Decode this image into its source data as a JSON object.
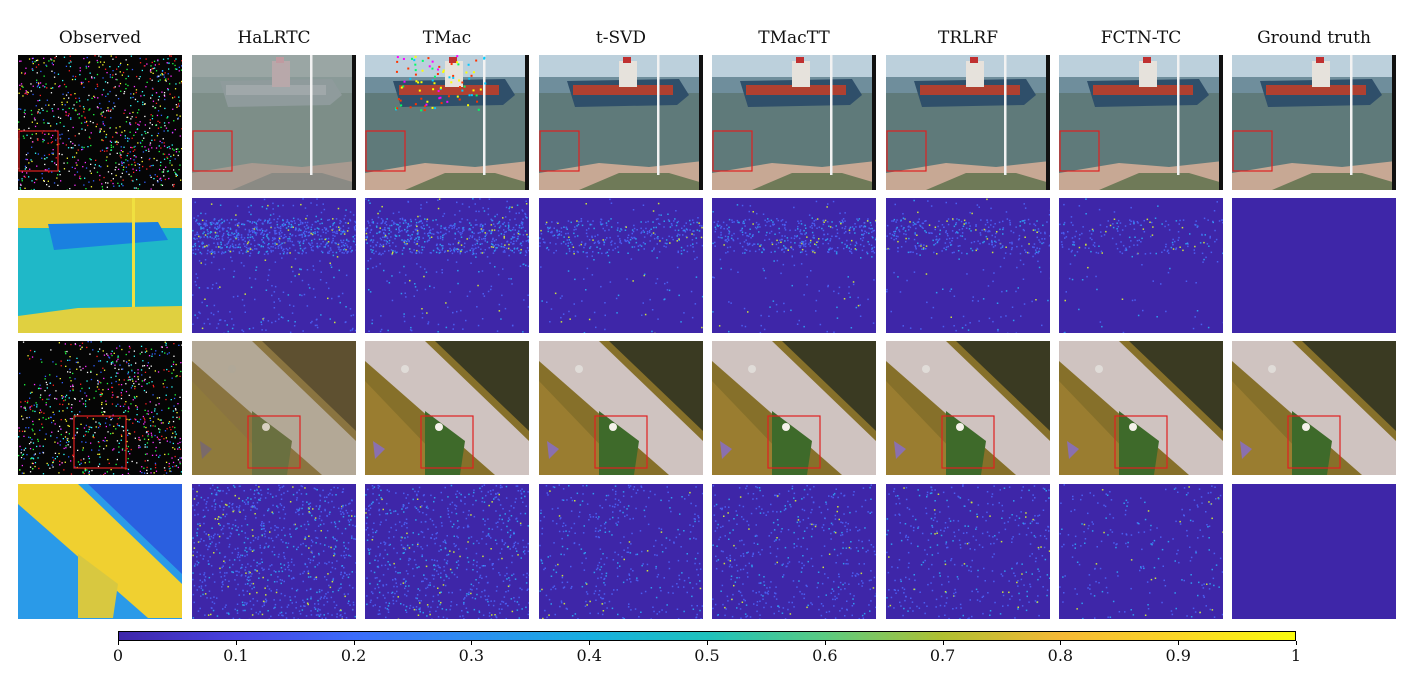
{
  "columns": [
    "Observed",
    "HaLRTC",
    "TMac",
    "t-SVD",
    "TMacTT",
    "TRLRF",
    "FCTN-TC",
    "Ground truth"
  ],
  "rows": [
    {
      "type": "ship",
      "content": "ship video frame reconstruction"
    },
    {
      "type": "error-map",
      "content": "ship residual"
    },
    {
      "type": "garden",
      "content": "garden video frame reconstruction"
    },
    {
      "type": "error-map",
      "content": "garden residual"
    }
  ],
  "colorbar": {
    "ticks": [
      "0",
      "0.1",
      "0.2",
      "0.3",
      "0.4",
      "0.5",
      "0.6",
      "0.7",
      "0.8",
      "0.9",
      "1"
    ],
    "colormap": "parula",
    "range": [
      0,
      1
    ]
  },
  "highlight_color": "#e02020"
}
